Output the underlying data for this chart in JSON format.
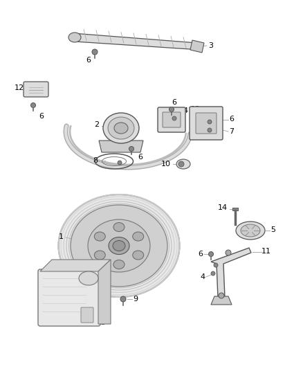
{
  "background_color": "#ffffff",
  "line_color": "#555555",
  "text_color": "#000000",
  "part_color": "#888888",
  "part_fill": "#e0e0e0",
  "figsize": [
    4.38,
    5.33
  ],
  "dpi": 100
}
